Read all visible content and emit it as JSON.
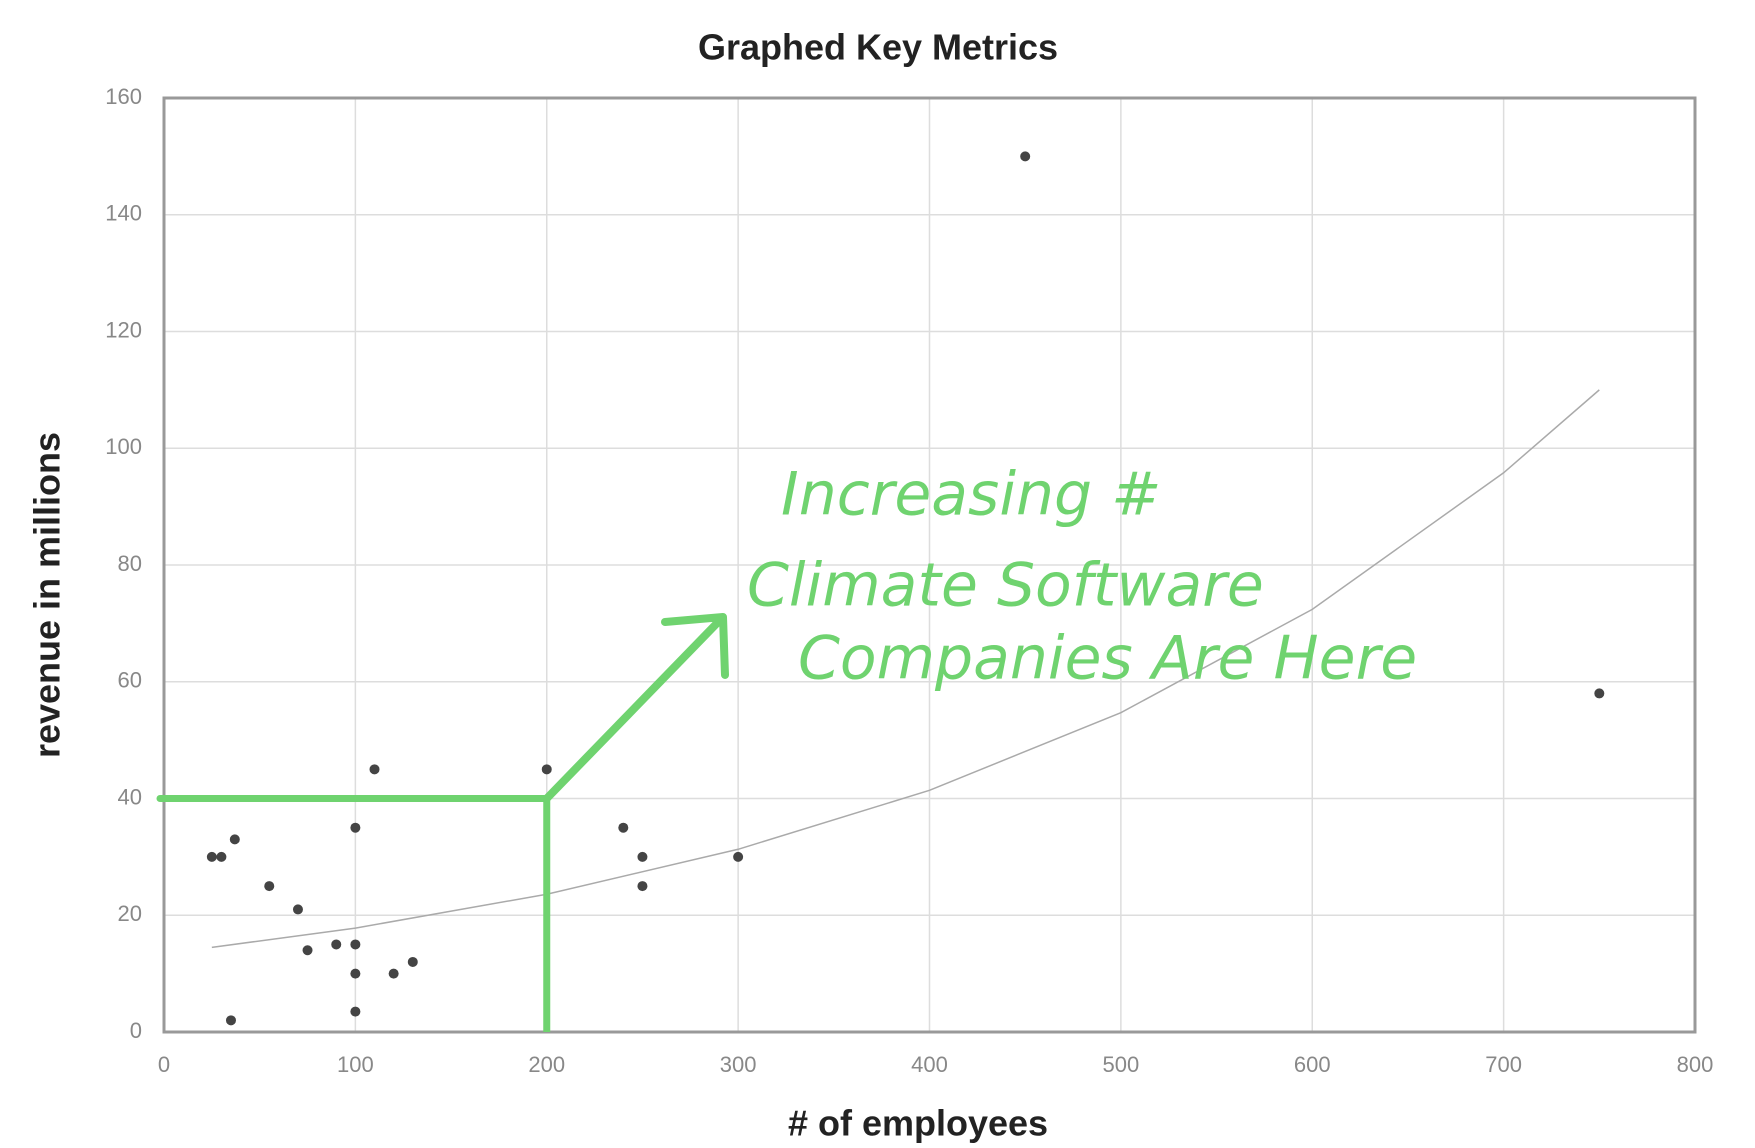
{
  "chart_data": {
    "type": "scatter",
    "title": "Graphed Key Metrics",
    "x_label": "# of employees",
    "y_label": "revenue in millions",
    "x": [
      25,
      30,
      37,
      35,
      55,
      70,
      75,
      90,
      100,
      100,
      100,
      100,
      110,
      120,
      130,
      200,
      240,
      250,
      250,
      300,
      450,
      750
    ],
    "values": [
      30,
      30,
      33,
      2,
      25,
      21,
      14,
      15,
      15,
      10,
      3.5,
      35,
      45,
      10,
      12,
      45,
      35,
      30,
      25,
      30,
      150,
      58
    ],
    "color": "#444444",
    "trendline": {
      "type": "exponential",
      "color": "#aaaaaa",
      "x": [
        25,
        100,
        200,
        300,
        400,
        500,
        600,
        700,
        750
      ],
      "values": [
        14.5,
        17.8,
        23.6,
        31.3,
        41.4,
        54.7,
        72.4,
        95.8,
        110
      ]
    },
    "highlight": {
      "x": 200,
      "y": 40,
      "color": "#6fd36f"
    },
    "annotation": {
      "lines": [
        "Increasing #",
        "Climate Software",
        "Companies Are Here"
      ],
      "color": "#6fd36f"
    },
    "xlim": [
      0,
      800
    ],
    "xticks": [
      0,
      100,
      200,
      300,
      400,
      500,
      600,
      700,
      800
    ],
    "ylim": [
      0,
      160
    ],
    "yticks": [
      0,
      20,
      40,
      60,
      80,
      100,
      120,
      140,
      160
    ],
    "grid": true
  }
}
